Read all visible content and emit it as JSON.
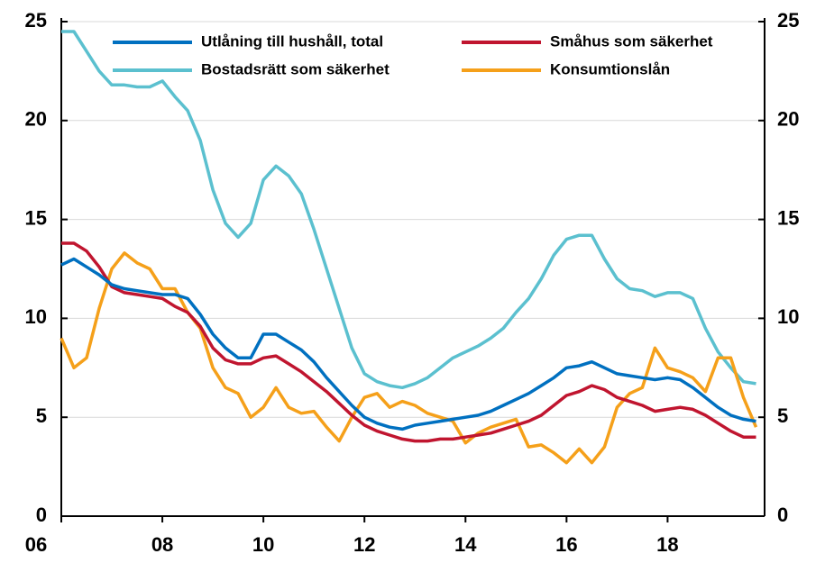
{
  "chart_data": {
    "type": "line",
    "x": [
      2006,
      2006.25,
      2006.5,
      2006.75,
      2007,
      2007.25,
      2007.5,
      2007.75,
      2008,
      2008.25,
      2008.5,
      2008.75,
      2009,
      2009.25,
      2009.5,
      2009.75,
      2010,
      2010.25,
      2010.5,
      2010.75,
      2011,
      2011.25,
      2011.5,
      2011.75,
      2012,
      2012.25,
      2012.5,
      2012.75,
      2013,
      2013.25,
      2013.5,
      2013.75,
      2014,
      2014.25,
      2014.5,
      2014.75,
      2015,
      2015.25,
      2015.5,
      2015.75,
      2016,
      2016.25,
      2016.5,
      2016.75,
      2017,
      2017.25,
      2017.5,
      2017.75,
      2018,
      2018.25,
      2018.5,
      2018.75,
      2019,
      2019.25,
      2019.5,
      2019.75
    ],
    "series": [
      {
        "name": "Utlåning till hushåll, total",
        "color": "#0070c0",
        "values": [
          12.7,
          13.0,
          12.6,
          12.2,
          11.7,
          11.5,
          11.4,
          11.3,
          11.2,
          11.2,
          11.0,
          10.2,
          9.2,
          8.5,
          8.0,
          8.0,
          9.2,
          9.2,
          8.8,
          8.4,
          7.8,
          7.0,
          6.3,
          5.6,
          5.0,
          4.7,
          4.5,
          4.4,
          4.6,
          4.7,
          4.8,
          4.9,
          5.0,
          5.1,
          5.3,
          5.6,
          5.9,
          6.2,
          6.6,
          7.0,
          7.5,
          7.6,
          7.8,
          7.5,
          7.2,
          7.1,
          7.0,
          6.9,
          7.0,
          6.9,
          6.5,
          6.0,
          5.5,
          5.1,
          4.9,
          4.8
        ]
      },
      {
        "name": "Småhus som säkerhet",
        "color": "#c0152f",
        "values": [
          13.8,
          13.8,
          13.4,
          12.6,
          11.6,
          11.3,
          11.2,
          11.1,
          11.0,
          10.6,
          10.3,
          9.6,
          8.5,
          7.9,
          7.7,
          7.7,
          8.0,
          8.1,
          7.7,
          7.3,
          6.8,
          6.3,
          5.7,
          5.1,
          4.6,
          4.3,
          4.1,
          3.9,
          3.8,
          3.8,
          3.9,
          3.9,
          4.0,
          4.1,
          4.2,
          4.4,
          4.6,
          4.8,
          5.1,
          5.6,
          6.1,
          6.3,
          6.6,
          6.4,
          6.0,
          5.8,
          5.6,
          5.3,
          5.4,
          5.5,
          5.4,
          5.1,
          4.7,
          4.3,
          4.0,
          4.0
        ]
      },
      {
        "name": "Bostadsrätt som säkerhet",
        "color": "#5bc0cf",
        "values": [
          24.5,
          24.5,
          23.5,
          22.5,
          21.8,
          21.8,
          21.7,
          21.7,
          22.0,
          21.2,
          20.5,
          19.0,
          16.5,
          14.8,
          14.1,
          14.8,
          17.0,
          17.7,
          17.2,
          16.3,
          14.5,
          12.5,
          10.5,
          8.5,
          7.2,
          6.8,
          6.6,
          6.5,
          6.7,
          7.0,
          7.5,
          8.0,
          8.3,
          8.6,
          9.0,
          9.5,
          10.3,
          11.0,
          12.0,
          13.2,
          14.0,
          14.2,
          14.2,
          13.0,
          12.0,
          11.5,
          11.4,
          11.1,
          11.3,
          11.3,
          11.0,
          9.5,
          8.3,
          7.5,
          6.8,
          6.7
        ]
      },
      {
        "name": "Konsumtionslån",
        "color": "#f5a01a",
        "values": [
          9.0,
          7.5,
          8.0,
          10.5,
          12.5,
          13.3,
          12.8,
          12.5,
          11.5,
          11.5,
          10.3,
          9.5,
          7.5,
          6.5,
          6.2,
          5.0,
          5.5,
          6.5,
          5.5,
          5.2,
          5.3,
          4.5,
          3.8,
          5.0,
          6.0,
          6.2,
          5.5,
          5.8,
          5.6,
          5.2,
          5.0,
          4.8,
          3.7,
          4.2,
          4.5,
          4.7,
          4.9,
          3.5,
          3.6,
          3.2,
          2.7,
          3.4,
          2.7,
          3.5,
          5.5,
          6.2,
          6.5,
          8.5,
          7.5,
          7.3,
          7.0,
          6.3,
          8.0,
          8.0,
          6.0,
          4.5
        ]
      }
    ],
    "xlim": [
      2006,
      2019.92
    ],
    "xticks": [
      {
        "value": 2006,
        "label": "06"
      },
      {
        "value": 2008,
        "label": "08"
      },
      {
        "value": 2010,
        "label": "10"
      },
      {
        "value": 2012,
        "label": "12"
      },
      {
        "value": 2014,
        "label": "14"
      },
      {
        "value": 2016,
        "label": "16"
      },
      {
        "value": 2018,
        "label": "18"
      }
    ],
    "ylim": [
      0,
      25
    ],
    "yticks": [
      0,
      5,
      10,
      15,
      20,
      25
    ],
    "y2lim": [
      0,
      25
    ],
    "y2ticks": [
      0,
      5,
      10,
      15,
      20,
      25
    ],
    "grid": true
  }
}
